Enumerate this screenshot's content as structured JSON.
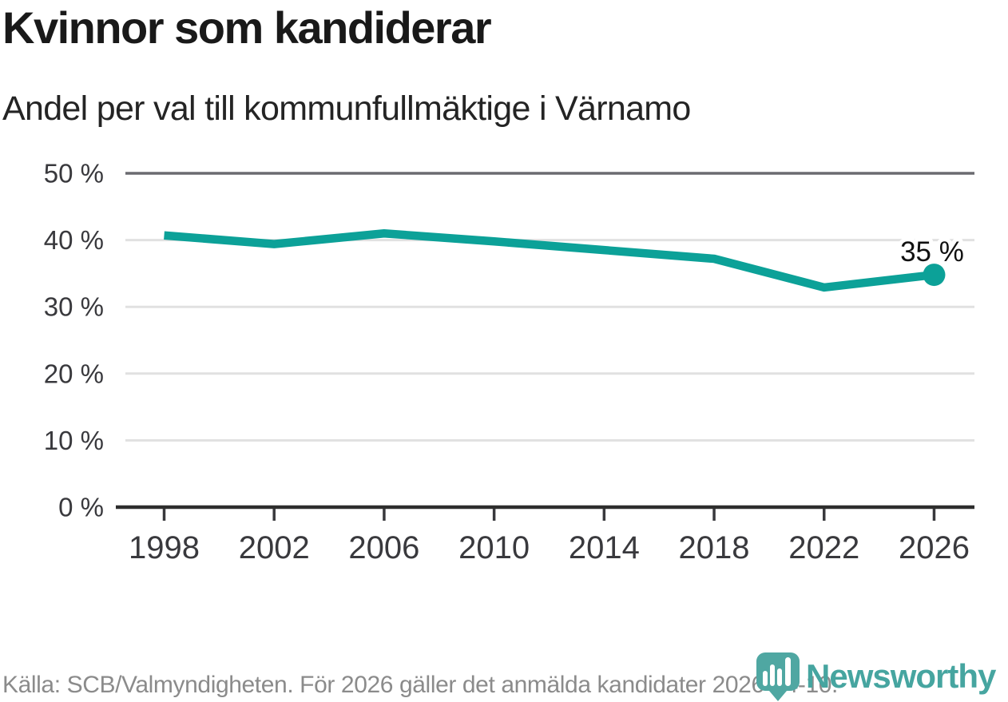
{
  "header": {
    "title": "Kvinnor som kandiderar",
    "subtitle": "Andel per val till kommunfullmäktige i Värnamo"
  },
  "chart_data": {
    "type": "line",
    "title": "Kvinnor som kandiderar",
    "subtitle": "Andel per val till kommunfullmäktige i Värnamo",
    "x": [
      1998,
      2002,
      2006,
      2010,
      2014,
      2018,
      2022,
      2026
    ],
    "x_tick_labels": [
      "1998",
      "2002",
      "2006",
      "2010",
      "2014",
      "2018",
      "2022",
      "2026"
    ],
    "series": [
      {
        "values": [
          40.7,
          39.4,
          41.0,
          39.8,
          38.5,
          37.2,
          32.9,
          34.8
        ],
        "color": "#0CA198"
      }
    ],
    "end_point_label": "35 %",
    "y_ticks": [
      0,
      10,
      20,
      30,
      40,
      50
    ],
    "y_tick_labels": [
      "0 %",
      "10 %",
      "20 %",
      "30 %",
      "40 %",
      "50 %"
    ],
    "ylim": [
      0,
      50
    ],
    "grid": "horizontal",
    "legend": "none"
  },
  "footer": {
    "source": "Källa: SCB/Valmyndigheten. För 2026 gäller det anmälda kandidater 2026-04-10."
  },
  "logo": {
    "text": "Newsworthy",
    "icon": "newsworthy-pin-barchart-icon",
    "icon_color": "#4FA7A2",
    "text_color": "#46A5A0"
  },
  "colors": {
    "line": "#0CA198",
    "grid_light": "#e1e1e1",
    "grid_top": "#6b6b70",
    "axis": "#2d2d2d",
    "tick_label": "#39393d",
    "end_label_text": "#111111",
    "title": "#191919",
    "subtitle": "#242424",
    "source_text": "#8b8b8b"
  }
}
